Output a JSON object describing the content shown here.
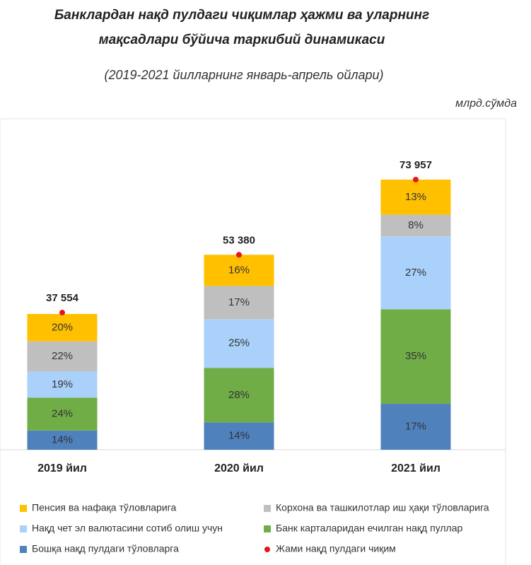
{
  "chart_data": {
    "type": "stacked_bar",
    "title": [
      "Банклардан нақд пулдаги чиқимлар ҳажми ва уларнинг",
      "мақсадлари бўйича таркибий динамикаси"
    ],
    "subtitle": "(2019-2021 йилларнинг январь-апрель ойлари)",
    "unit_label": "млрд.сўмда",
    "categories": [
      "2019 йил",
      "2020 йил",
      "2021 йил"
    ],
    "series": [
      {
        "name": "Пенсия ва нафақа тўловларига",
        "color": "#ffc000",
        "values": [
          20,
          16,
          13
        ],
        "value_labels": [
          "20%",
          "16%",
          "13%"
        ]
      },
      {
        "name": "Корхона ва ташкилотлар иш ҳақи тўловларига",
        "color": "#bfbfbf",
        "values": [
          22,
          17,
          8
        ],
        "value_labels": [
          "22%",
          "17%",
          "8%"
        ]
      },
      {
        "name": "Нақд чет эл валютасини сотиб олиш учун",
        "color": "#a9d1fa",
        "values": [
          19,
          25,
          27
        ],
        "value_labels": [
          "19%",
          "25%",
          "27%"
        ]
      },
      {
        "name": "Банк карталаридан ечилган нақд пуллар",
        "color": "#70ad47",
        "values": [
          24,
          28,
          35
        ],
        "value_labels": [
          "24%",
          "28%",
          "35%"
        ]
      },
      {
        "name": "Бошқа нақд пулдаги тўловларга",
        "color": "#4f81bd",
        "values": [
          14,
          14,
          17
        ],
        "value_labels": [
          "14%",
          "14%",
          "17%"
        ]
      }
    ],
    "total": {
      "name": "Жами нақд пулдаги чиқим",
      "color": "#e8141c",
      "values": [
        37554,
        53380,
        73957
      ],
      "value_labels": [
        "37 554",
        "53 380",
        "73 957"
      ]
    }
  }
}
